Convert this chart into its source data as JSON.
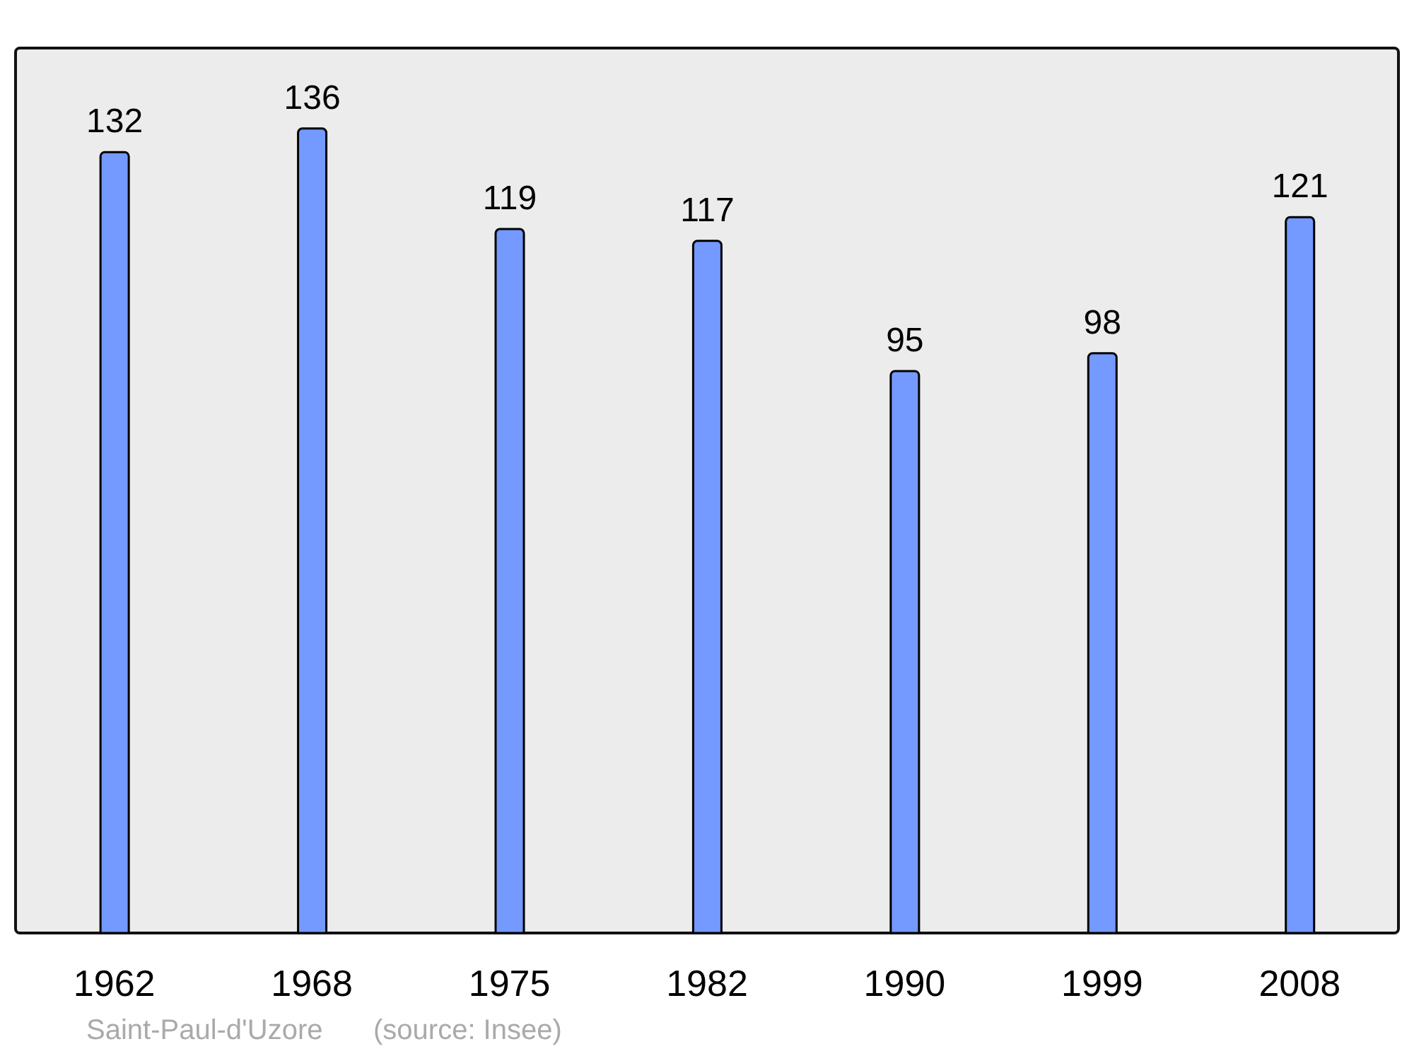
{
  "chart_data": {
    "type": "bar",
    "categories": [
      "1962",
      "1968",
      "1975",
      "1982",
      "1990",
      "1999",
      "2008"
    ],
    "values": [
      132,
      136,
      119,
      117,
      95,
      98,
      121
    ],
    "color": "#7499ff",
    "data_labels": true,
    "annotations": [
      "Saint-Paul-d'Uzore",
      "(source: Insee)"
    ]
  }
}
